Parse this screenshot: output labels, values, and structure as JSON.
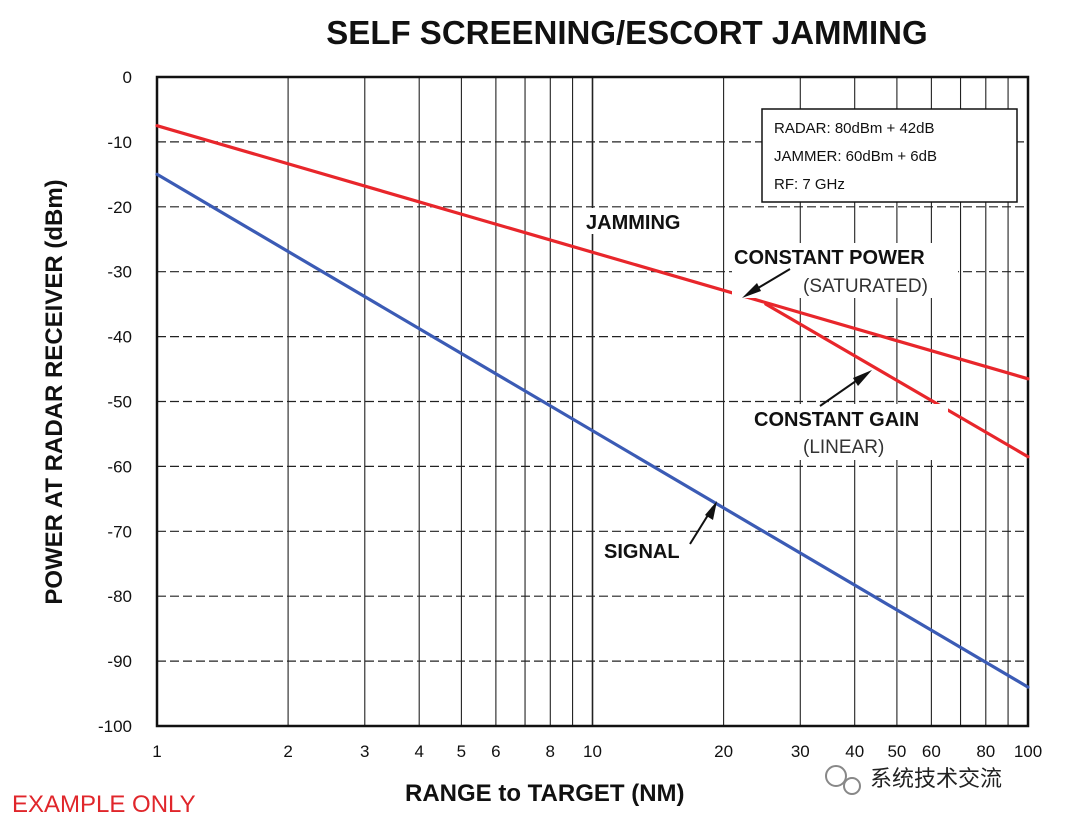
{
  "chart_data": {
    "type": "line",
    "title": "SELF SCREENING/ESCORT JAMMING",
    "xlabel": "RANGE to TARGET (NM)",
    "ylabel": "POWER AT RADAR RECEIVER (dBm)",
    "x_scale": "log",
    "xlim": [
      1,
      100
    ],
    "ylim": [
      -100,
      0
    ],
    "x_tick_labels": [
      "1",
      "2",
      "3",
      "4",
      "5",
      "6",
      "8",
      "10",
      "20",
      "30",
      "40",
      "50",
      "60",
      "80",
      "100"
    ],
    "y_tick_labels": [
      "0",
      "-10",
      "-20",
      "-30",
      "-40",
      "-50",
      "-60",
      "-70",
      "-80",
      "-90",
      "-100"
    ],
    "grid": true,
    "series": [
      {
        "name": "JAMMING",
        "key": "jamming",
        "color": "#e8262b",
        "x": [
          1,
          100
        ],
        "y": [
          -7.5,
          -46.5
        ]
      },
      {
        "name": "SIGNAL",
        "key": "signal",
        "color": "#3b5bb5",
        "x": [
          1,
          100
        ],
        "y": [
          -15,
          -94
        ]
      },
      {
        "name": "CONSTANT GAIN",
        "key": "constant_gain",
        "color": "#e8262b",
        "x": [
          25,
          100
        ],
        "y": [
          -35,
          -58.5
        ]
      }
    ],
    "legend": {
      "lines": [
        "RADAR:  80dBm + 42dB",
        "JAMMER:  60dBm + 6dB",
        "RF:  7 GHz"
      ],
      "placement": "top-right"
    },
    "annotations": {
      "jamming": "JAMMING",
      "constant_power": "CONSTANT POWER",
      "saturated": "(SATURATED)",
      "constant_gain": "CONSTANT GAIN",
      "linear": "(LINEAR)",
      "signal": "SIGNAL"
    }
  },
  "footer": {
    "example_only": "EXAMPLE ONLY",
    "watermark": "系统技术交流"
  }
}
